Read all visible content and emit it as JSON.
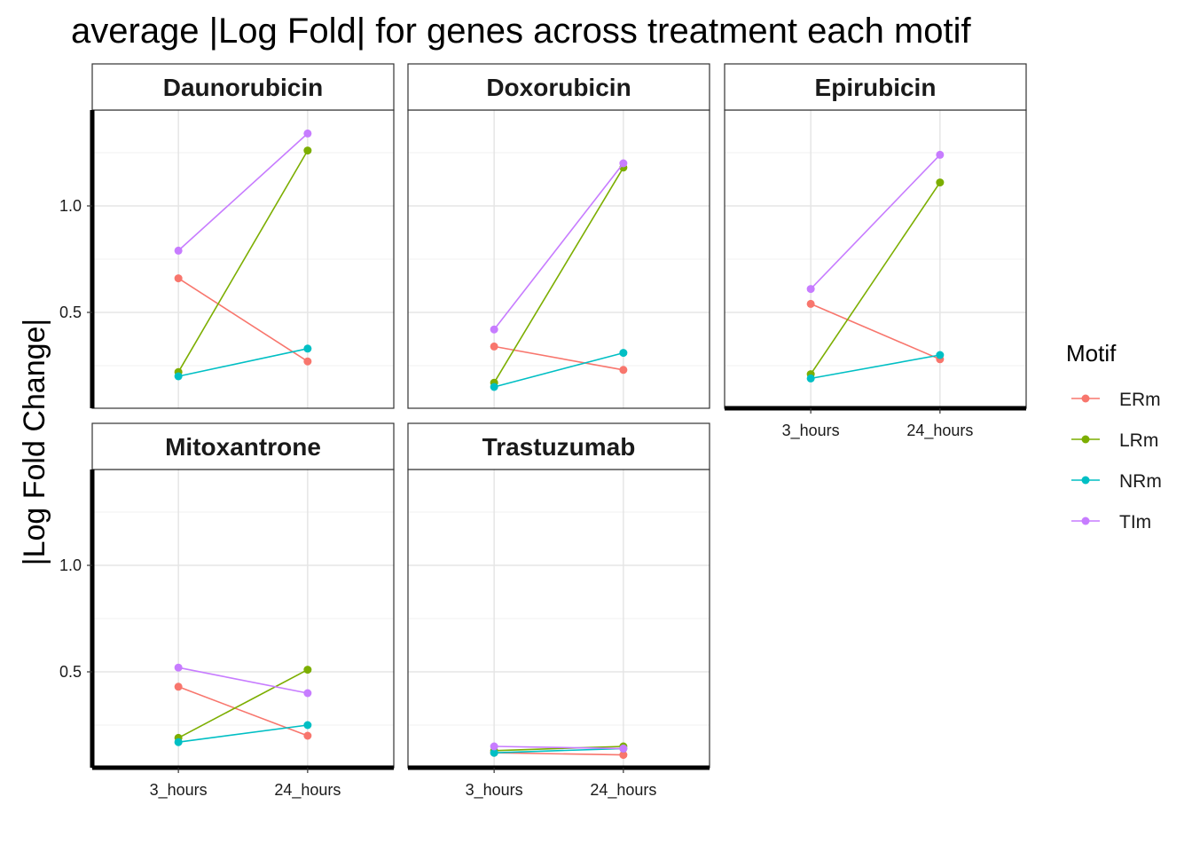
{
  "chart_data": {
    "type": "line",
    "title": "average |Log Fold| for genes across treatment each motif",
    "xlabel": "",
    "ylabel": "|Log Fold Change|",
    "x": [
      "3_hours",
      "24_hours"
    ],
    "ylim": [
      0.05,
      1.45
    ],
    "yticks": [
      0.5,
      1.0
    ],
    "ytick_labels": [
      "0.5",
      "1.0"
    ],
    "grid": true,
    "legend": {
      "title": "Motif",
      "position": "right"
    },
    "series_colors": {
      "ERm": "#F8766D",
      "LRm": "#7CAE00",
      "NRm": "#00BFC4",
      "TIm": "#C77CFF"
    },
    "legend_entries": [
      "ERm",
      "LRm",
      "NRm",
      "TIm"
    ],
    "panels": [
      {
        "name": "Daunorubicin",
        "series": [
          {
            "name": "ERm",
            "values": [
              0.66,
              0.27
            ]
          },
          {
            "name": "LRm",
            "values": [
              0.22,
              1.26
            ]
          },
          {
            "name": "NRm",
            "values": [
              0.2,
              0.33
            ]
          },
          {
            "name": "TIm",
            "values": [
              0.79,
              1.34
            ]
          }
        ]
      },
      {
        "name": "Doxorubicin",
        "series": [
          {
            "name": "ERm",
            "values": [
              0.34,
              0.23
            ]
          },
          {
            "name": "LRm",
            "values": [
              0.17,
              1.18
            ]
          },
          {
            "name": "NRm",
            "values": [
              0.15,
              0.31
            ]
          },
          {
            "name": "TIm",
            "values": [
              0.42,
              1.2
            ]
          }
        ]
      },
      {
        "name": "Epirubicin",
        "series": [
          {
            "name": "ERm",
            "values": [
              0.54,
              0.28
            ]
          },
          {
            "name": "LRm",
            "values": [
              0.21,
              1.11
            ]
          },
          {
            "name": "NRm",
            "values": [
              0.19,
              0.3
            ]
          },
          {
            "name": "TIm",
            "values": [
              0.61,
              1.24
            ]
          }
        ]
      },
      {
        "name": "Mitoxantrone",
        "series": [
          {
            "name": "ERm",
            "values": [
              0.43,
              0.2
            ]
          },
          {
            "name": "LRm",
            "values": [
              0.19,
              0.51
            ]
          },
          {
            "name": "NRm",
            "values": [
              0.17,
              0.25
            ]
          },
          {
            "name": "TIm",
            "values": [
              0.52,
              0.4
            ]
          }
        ]
      },
      {
        "name": "Trastuzumab",
        "series": [
          {
            "name": "ERm",
            "values": [
              0.12,
              0.11
            ]
          },
          {
            "name": "LRm",
            "values": [
              0.13,
              0.15
            ]
          },
          {
            "name": "NRm",
            "values": [
              0.12,
              0.14
            ]
          },
          {
            "name": "TIm",
            "values": [
              0.15,
              0.14
            ]
          }
        ]
      }
    ]
  }
}
